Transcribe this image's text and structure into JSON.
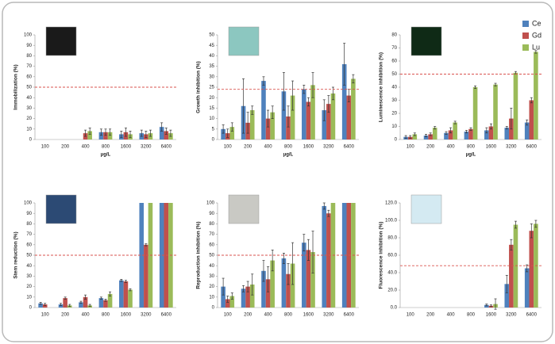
{
  "chart_data": [
    {
      "type": "bar",
      "ylabel": "Immobilization (%)",
      "xlabel": "µg/L",
      "categories": [
        "100",
        "200",
        "400",
        "800",
        "1600",
        "3200",
        "6400"
      ],
      "ylim": [
        0,
        100
      ],
      "yticks": [
        0,
        10,
        20,
        30,
        40,
        50,
        60,
        70,
        80,
        90,
        100
      ],
      "threshold": 50,
      "image_color": "#1a1a1a",
      "series": [
        {
          "color": "#4f81bd",
          "values": [
            0,
            0,
            0,
            7,
            5,
            6,
            12
          ],
          "errors": [
            0,
            0,
            0,
            3,
            3,
            3,
            4
          ]
        },
        {
          "color": "#c0504d",
          "values": [
            0,
            0,
            6,
            7,
            7,
            5,
            8
          ],
          "errors": [
            0,
            0,
            3,
            3,
            4,
            3,
            3
          ]
        },
        {
          "color": "#9bbb59",
          "values": [
            0,
            0,
            8,
            7,
            5,
            6,
            6
          ],
          "errors": [
            0,
            0,
            3,
            3,
            3,
            3,
            3
          ]
        }
      ]
    },
    {
      "type": "bar",
      "ylabel": "Growth inhibition (%)",
      "xlabel": "µg/L",
      "categories": [
        "100",
        "200",
        "400",
        "800",
        "1600",
        "3200",
        "6400"
      ],
      "ylim": [
        0,
        50
      ],
      "yticks": [
        0,
        5,
        10,
        15,
        20,
        25,
        30,
        35,
        40,
        45,
        50
      ],
      "threshold": 24,
      "image_color": "#8cc7c0",
      "series": [
        {
          "color": "#4f81bd",
          "values": [
            5,
            16,
            28,
            23,
            24,
            14,
            36
          ],
          "errors": [
            2,
            13,
            2,
            9,
            2,
            5,
            10
          ]
        },
        {
          "color": "#c0504d",
          "values": [
            3,
            8,
            10,
            11,
            18,
            17,
            21
          ],
          "errors": [
            2,
            5,
            4,
            5,
            2,
            4,
            3
          ]
        },
        {
          "color": "#9bbb59",
          "values": [
            6,
            14,
            13,
            21,
            26,
            22,
            29
          ],
          "errors": [
            2,
            2,
            3,
            7,
            6,
            3,
            2
          ]
        }
      ]
    },
    {
      "type": "bar",
      "ylabel": "Luminescence inhibition (%)",
      "xlabel": "µg/L",
      "categories": [
        "100",
        "200",
        "400",
        "800",
        "1600",
        "3200",
        "6400"
      ],
      "ylim": [
        0,
        80
      ],
      "yticks": [
        0,
        10,
        20,
        30,
        40,
        50,
        60,
        70,
        80
      ],
      "threshold": 50,
      "image_color": "#0f2a16",
      "legend": "top-right",
      "series": [
        {
          "name": "Ce",
          "color": "#4f81bd",
          "values": [
            2,
            3,
            5,
            6,
            7,
            9,
            13
          ],
          "errors": [
            1,
            1,
            1,
            1,
            2,
            1,
            2
          ]
        },
        {
          "name": "Gd",
          "color": "#c0504d",
          "values": [
            2,
            4,
            7,
            8,
            10,
            16,
            30
          ],
          "errors": [
            1,
            1,
            2,
            1,
            2,
            8,
            2
          ]
        },
        {
          "name": "Lu",
          "color": "#9bbb59",
          "values": [
            4,
            9,
            13,
            40,
            42,
            51,
            67
          ],
          "errors": [
            1,
            1,
            1,
            1,
            1,
            1,
            1
          ]
        }
      ]
    },
    {
      "type": "bar",
      "ylabel": "Stem reduction (%)",
      "categories": [
        "100",
        "200",
        "400",
        "800",
        "1600",
        "3200",
        "6400"
      ],
      "ylim": [
        0,
        100
      ],
      "yticks": [
        0,
        10,
        20,
        30,
        40,
        50,
        60,
        70,
        80,
        90,
        100
      ],
      "threshold": 50,
      "image_color": "#2c4a74",
      "series": [
        {
          "color": "#4f81bd",
          "values": [
            4,
            3,
            5,
            9,
            26,
            100,
            100
          ],
          "errors": [
            1,
            1,
            1,
            1,
            1,
            0,
            0
          ]
        },
        {
          "color": "#c0504d",
          "values": [
            3,
            9,
            10,
            7,
            25,
            60,
            100
          ],
          "errors": [
            1,
            1,
            2,
            1,
            1,
            1,
            0
          ]
        },
        {
          "color": "#9bbb59",
          "values": [
            0,
            2,
            2,
            13,
            17,
            100,
            100
          ],
          "errors": [
            0,
            1,
            1,
            2,
            1,
            0,
            0
          ]
        }
      ]
    },
    {
      "type": "bar",
      "ylabel": "Reproduction inhibition (%)",
      "categories": [
        "100",
        "200",
        "400",
        "800",
        "1600",
        "3200",
        "6400"
      ],
      "ylim": [
        0,
        100
      ],
      "yticks": [
        0,
        10,
        20,
        30,
        40,
        50,
        60,
        70,
        80,
        90,
        100
      ],
      "threshold": 50,
      "image_color": "#c9c9c4",
      "series": [
        {
          "color": "#4f81bd",
          "values": [
            20,
            18,
            35,
            47,
            62,
            97,
            100
          ],
          "errors": [
            8,
            3,
            10,
            5,
            8,
            3,
            0
          ]
        },
        {
          "color": "#c0504d",
          "values": [
            8,
            20,
            27,
            32,
            55,
            90,
            100
          ],
          "errors": [
            3,
            5,
            12,
            10,
            10,
            3,
            0
          ]
        },
        {
          "color": "#9bbb59",
          "values": [
            11,
            22,
            45,
            42,
            53,
            100,
            100
          ],
          "errors": [
            3,
            10,
            10,
            20,
            20,
            0,
            0
          ]
        }
      ]
    },
    {
      "type": "bar",
      "ylabel": "Fluorescence inhibition (%)",
      "categories": [
        "100",
        "200",
        "400",
        "800",
        "1600",
        "3200",
        "6400"
      ],
      "ylim": [
        0,
        120
      ],
      "yticks": [
        {
          "value": 0,
          "label": "0.0"
        },
        {
          "value": 20,
          "label": "20.0"
        },
        {
          "value": 40,
          "label": "40.0"
        },
        {
          "value": 60,
          "label": "60.0"
        },
        {
          "value": 80,
          "label": "80.0"
        },
        {
          "value": 100,
          "label": "100.0"
        },
        {
          "value": 120,
          "label": "120.0"
        }
      ],
      "threshold": 48,
      "image_color": "#d4eaf2",
      "series": [
        {
          "color": "#4f81bd",
          "values": [
            0,
            0,
            0,
            0,
            3,
            27,
            45
          ],
          "errors": [
            0,
            0,
            0,
            0,
            1,
            10,
            4
          ]
        },
        {
          "color": "#c0504d",
          "values": [
            0,
            0,
            0,
            0,
            2,
            72,
            88
          ],
          "errors": [
            0,
            0,
            0,
            0,
            1,
            6,
            8
          ]
        },
        {
          "color": "#9bbb59",
          "values": [
            0,
            0,
            0,
            0,
            4,
            95,
            96
          ],
          "errors": [
            0,
            0,
            0,
            0,
            6,
            4,
            4
          ]
        }
      ]
    }
  ]
}
